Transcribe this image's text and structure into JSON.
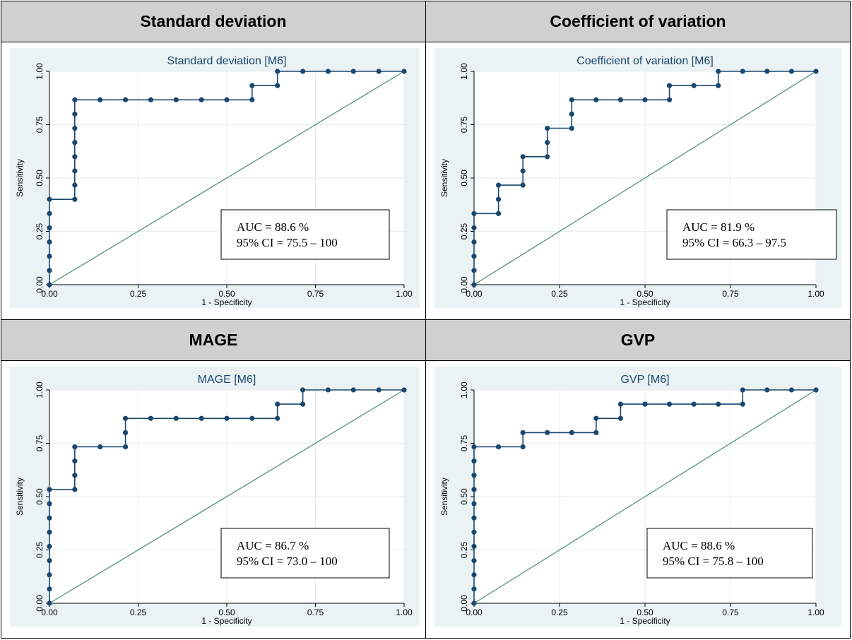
{
  "headers": [
    "Standard deviation",
    "Coefficient of variation",
    "MAGE",
    "GVP"
  ],
  "chart_data": [
    {
      "type": "line",
      "title": "Standard deviation [M6]",
      "xlabel": "1 - Specificity",
      "ylabel": "Sensitivity",
      "xlim": [
        0,
        1
      ],
      "ylim": [
        0,
        1
      ],
      "xticks": [
        "0.00",
        "0.25",
        "0.50",
        "0.75",
        "1.00"
      ],
      "yticks": [
        "0.00",
        "0.25",
        "0.50",
        "0.75",
        "1.00"
      ],
      "grid": true,
      "series": [
        {
          "x": [
            0,
            0,
            0,
            0,
            0,
            0,
            0,
            0.0714,
            0.0714,
            0.0714,
            0.0714,
            0.0714,
            0.0714,
            0.0714,
            0.0714,
            0.1429,
            0.2143,
            0.2857,
            0.3571,
            0.4286,
            0.5,
            0.5714,
            0.5714,
            0.6429,
            0.6429,
            0.7143,
            0.7857,
            0.8571,
            0.9286,
            1
          ],
          "y": [
            0,
            0.0667,
            0.1333,
            0.2,
            0.2667,
            0.3333,
            0.4,
            0.4,
            0.4667,
            0.5333,
            0.6,
            0.6667,
            0.7333,
            0.8,
            0.8667,
            0.8667,
            0.8667,
            0.8667,
            0.8667,
            0.8667,
            0.8667,
            0.8667,
            0.9333,
            0.9333,
            1,
            1,
            1,
            1,
            1,
            1
          ]
        }
      ],
      "reference_line": [
        [
          0,
          0
        ],
        [
          1,
          1
        ]
      ],
      "annotation": [
        "AUC = 88.6 %",
        "95% CI = 75.5 – 100"
      ]
    },
    {
      "type": "line",
      "title": "Coefficient of variation [M6]",
      "xlabel": "1 - Specificity",
      "ylabel": "Sensitivity",
      "xlim": [
        0,
        1
      ],
      "ylim": [
        0,
        1
      ],
      "xticks": [
        "0.00",
        "0.25",
        "0.50",
        "0.75",
        "1.00"
      ],
      "yticks": [
        "0.00",
        "0.25",
        "0.50",
        "0.75",
        "1.00"
      ],
      "grid": true,
      "series": [
        {
          "x": [
            0,
            0,
            0,
            0,
            0,
            0,
            0.0714,
            0.0714,
            0.0714,
            0.1429,
            0.1429,
            0.1429,
            0.2143,
            0.2143,
            0.2143,
            0.2857,
            0.2857,
            0.2857,
            0.3571,
            0.4286,
            0.5,
            0.5714,
            0.5714,
            0.6429,
            0.7143,
            0.7143,
            0.7857,
            0.8571,
            0.9286,
            1
          ],
          "y": [
            0,
            0.0667,
            0.1333,
            0.2,
            0.2667,
            0.3333,
            0.3333,
            0.4,
            0.4667,
            0.4667,
            0.5333,
            0.6,
            0.6,
            0.6667,
            0.7333,
            0.7333,
            0.8,
            0.8667,
            0.8667,
            0.8667,
            0.8667,
            0.8667,
            0.9333,
            0.9333,
            0.9333,
            1,
            1,
            1,
            1,
            1
          ]
        }
      ],
      "reference_line": [
        [
          0,
          0
        ],
        [
          1,
          1
        ]
      ],
      "annotation": [
        "AUC = 81.9 %",
        "95% CI = 66.3 – 97.5"
      ]
    },
    {
      "type": "line",
      "title": "MAGE [M6]",
      "xlabel": "1 - Specificity",
      "ylabel": "Sensitivity",
      "xlim": [
        0,
        1
      ],
      "ylim": [
        0,
        1
      ],
      "xticks": [
        "0.00",
        "0.25",
        "0.50",
        "0.75",
        "1.00"
      ],
      "yticks": [
        "0.00",
        "0.25",
        "0.50",
        "0.75",
        "1.00"
      ],
      "grid": true,
      "series": [
        {
          "x": [
            0,
            0,
            0,
            0,
            0,
            0,
            0,
            0,
            0,
            0.0714,
            0.0714,
            0.0714,
            0.0714,
            0.1429,
            0.2143,
            0.2143,
            0.2143,
            0.2857,
            0.3571,
            0.4286,
            0.5,
            0.5714,
            0.6429,
            0.6429,
            0.7143,
            0.7143,
            0.7857,
            0.8571,
            0.9286,
            1
          ],
          "y": [
            0,
            0.0667,
            0.1333,
            0.2,
            0.2667,
            0.3333,
            0.4,
            0.4667,
            0.5333,
            0.5333,
            0.6,
            0.6667,
            0.7333,
            0.7333,
            0.7333,
            0.8,
            0.8667,
            0.8667,
            0.8667,
            0.8667,
            0.8667,
            0.8667,
            0.8667,
            0.9333,
            0.9333,
            1,
            1,
            1,
            1,
            1
          ]
        }
      ],
      "reference_line": [
        [
          0,
          0
        ],
        [
          1,
          1
        ]
      ],
      "annotation": [
        "AUC = 86.7 %",
        "95% CI = 73.0 – 100"
      ]
    },
    {
      "type": "line",
      "title": "GVP [M6]",
      "xlabel": "1 - Specificity",
      "ylabel": "Sensitivity",
      "xlim": [
        0,
        1
      ],
      "ylim": [
        0,
        1
      ],
      "xticks": [
        "0.00",
        "0.25",
        "0.50",
        "0.75",
        "1.00"
      ],
      "yticks": [
        "0.00",
        "0.25",
        "0.50",
        "0.75",
        "1.00"
      ],
      "grid": true,
      "series": [
        {
          "x": [
            0,
            0,
            0,
            0,
            0,
            0,
            0,
            0,
            0,
            0,
            0,
            0,
            0.0714,
            0.1429,
            0.1429,
            0.2143,
            0.2857,
            0.3571,
            0.3571,
            0.4286,
            0.4286,
            0.5,
            0.5714,
            0.6429,
            0.7143,
            0.7857,
            0.7857,
            0.8571,
            0.9286,
            1
          ],
          "y": [
            0,
            0.0667,
            0.1333,
            0.2,
            0.2667,
            0.3333,
            0.4,
            0.4667,
            0.5333,
            0.6,
            0.6667,
            0.7333,
            0.7333,
            0.7333,
            0.8,
            0.8,
            0.8,
            0.8,
            0.8667,
            0.8667,
            0.9333,
            0.9333,
            0.9333,
            0.9333,
            0.9333,
            0.9333,
            1,
            1,
            1,
            1
          ]
        }
      ],
      "reference_line": [
        [
          0,
          0
        ],
        [
          1,
          1
        ]
      ],
      "annotation": [
        "AUC = 88.6 %",
        "95% CI = 75.8 – 100"
      ]
    }
  ],
  "colors": {
    "plot_bg": "#eaf2f3",
    "frame_bg": "#ffffff",
    "curve": "#1a476f",
    "reference": "#55907f",
    "gridline": "#ffffff",
    "title": "#1a476f",
    "header_bg": "#d0d0d0"
  }
}
